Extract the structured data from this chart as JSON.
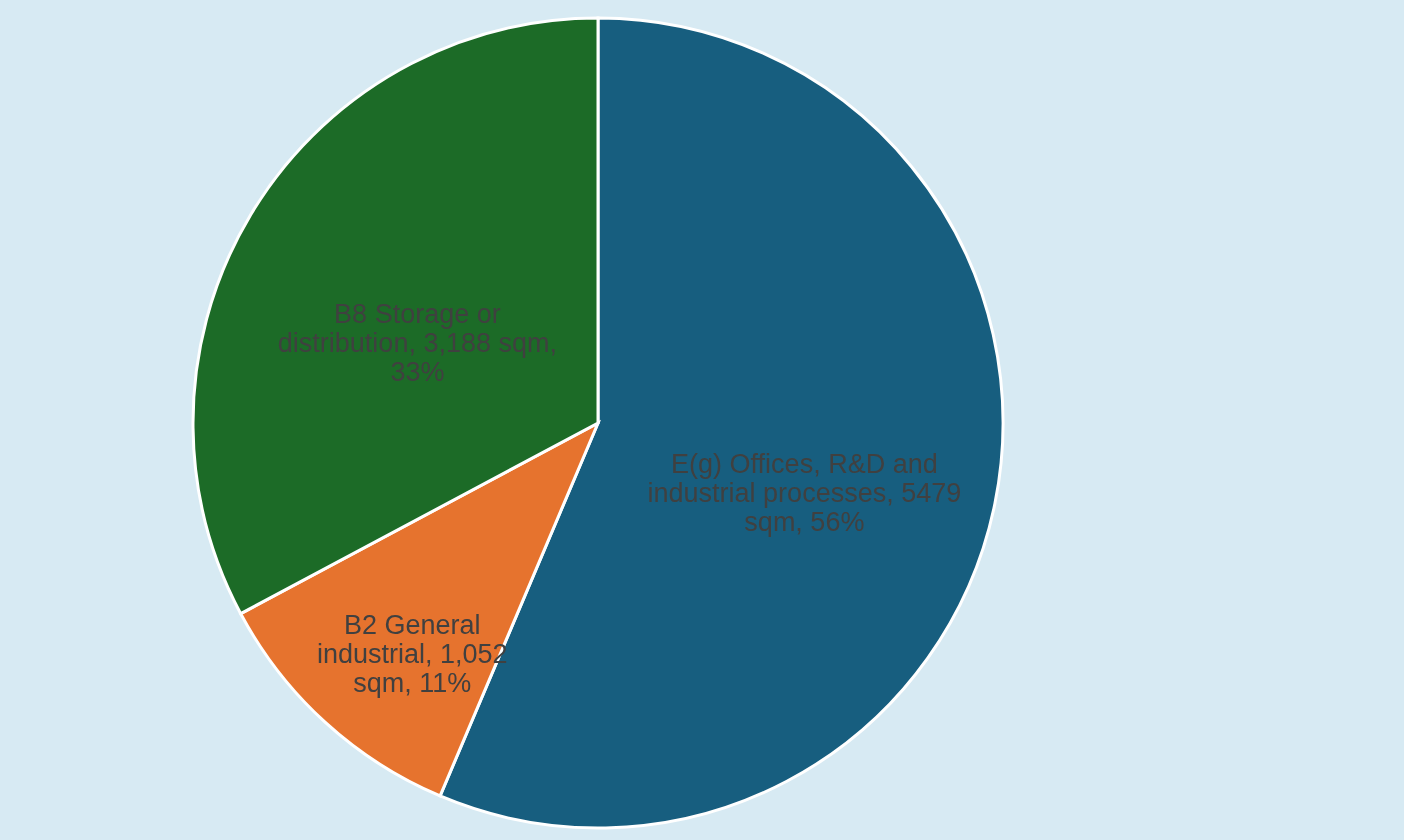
{
  "chart_data": {
    "type": "pie",
    "categories": [
      "E(g) Offices, R&D and industrial processes",
      "B2 General industrial",
      "B8 Storage or distribution"
    ],
    "values": [
      5479,
      1052,
      3188
    ],
    "value_labels": [
      "5479 sqm, 56%",
      "1,052 sqm, 11%",
      "3,188 sqm, 33%"
    ],
    "colors": [
      "#175e7f",
      "#e6732e",
      "#1c6b27"
    ],
    "legend": false
  }
}
